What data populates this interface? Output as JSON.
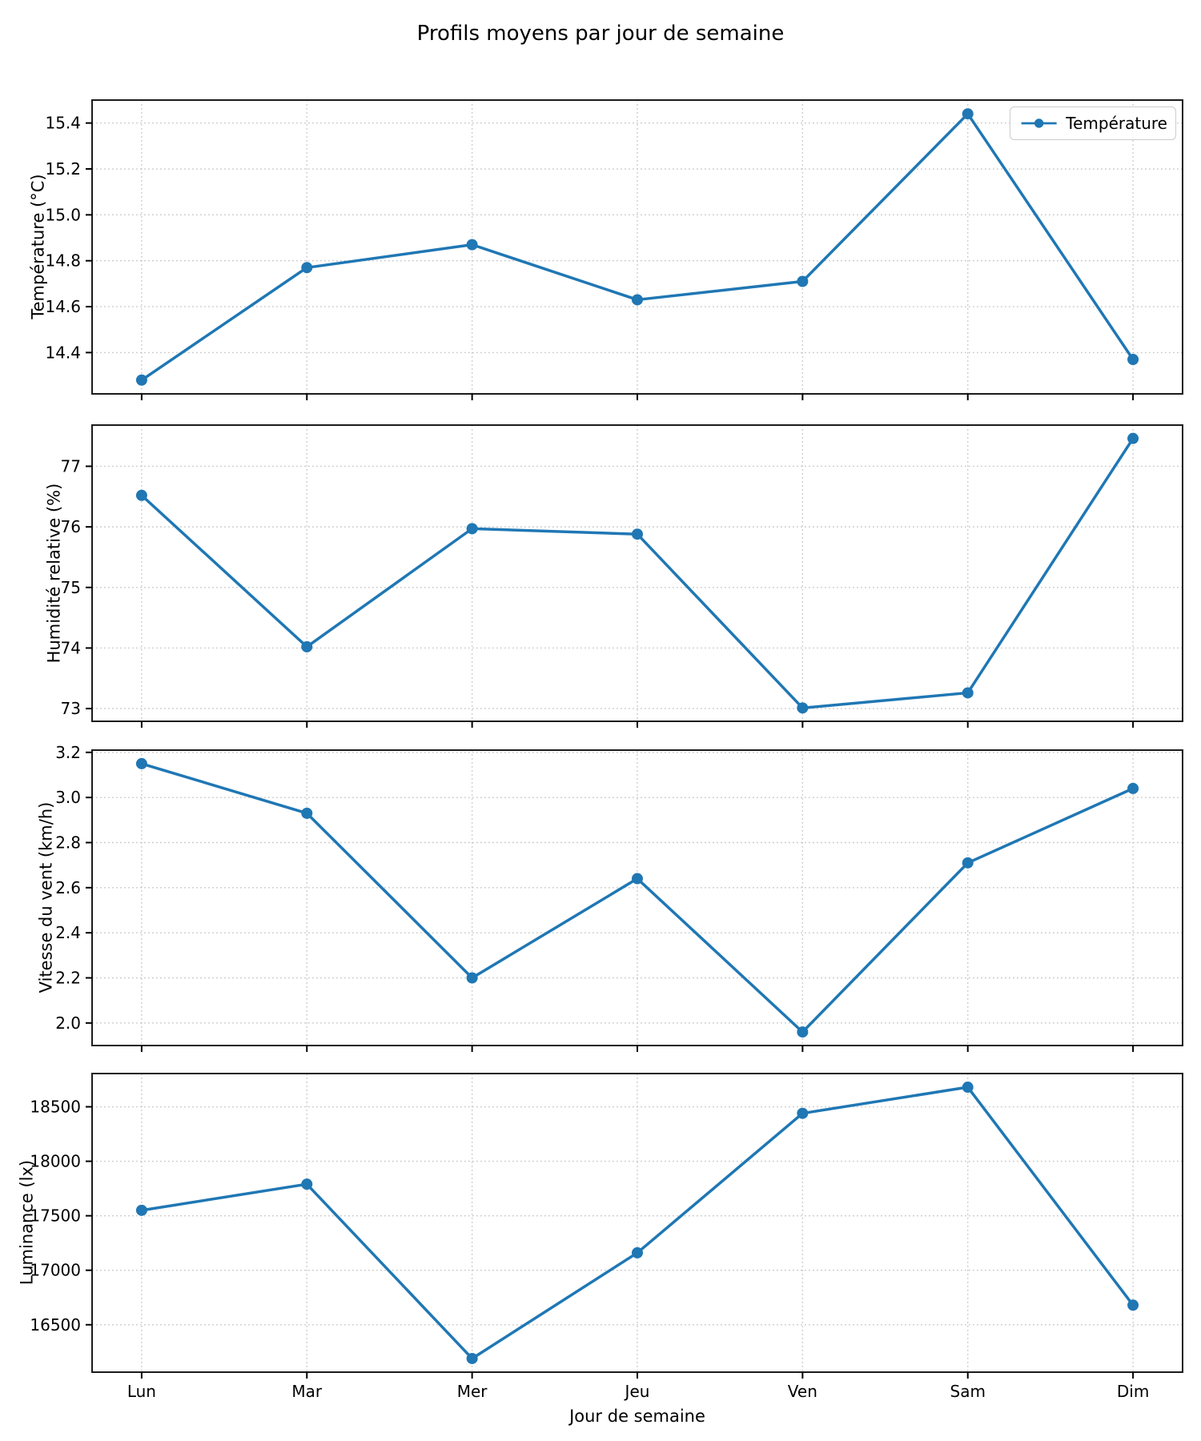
{
  "figure": {
    "title": "Profils moyens par jour de semaine",
    "background": "#ffffff",
    "text_color": "#000000"
  },
  "chart_data": {
    "type": "line",
    "x_label": "Jour de semaine",
    "categories": [
      "Lun",
      "Mar",
      "Mer",
      "Jeu",
      "Ven",
      "Sam",
      "Dim"
    ],
    "xlim": [
      -0.3,
      6.3
    ],
    "grid": true,
    "line_color": "#1f77b4",
    "grid_color": "#c9c9c9",
    "spine_color": "#1b1b1b",
    "legend_position": "upper right",
    "subplots": [
      {
        "ylabel": "Température (°C)",
        "series_name": "Température",
        "legend": true,
        "values": [
          14.28,
          14.77,
          14.87,
          14.63,
          14.71,
          15.44,
          14.37
        ],
        "yticks": [
          14.4,
          14.6,
          14.8,
          15.0,
          15.2,
          15.4
        ],
        "ytick_labels": [
          "14.4",
          "14.6",
          "14.8",
          "15.0",
          "15.2",
          "15.4"
        ],
        "ylim": [
          14.22,
          15.5
        ]
      },
      {
        "ylabel": "Humidité relative (%)",
        "series_name": "Humidité relative",
        "legend": false,
        "values": [
          76.52,
          74.02,
          75.97,
          75.88,
          73.01,
          73.26,
          77.46
        ],
        "yticks": [
          73,
          74,
          75,
          76,
          77
        ],
        "ytick_labels": [
          "73",
          "74",
          "75",
          "76",
          "77"
        ],
        "ylim": [
          72.79,
          77.68
        ]
      },
      {
        "ylabel": "Vitesse du vent (km/h)",
        "series_name": "Vitesse du vent",
        "legend": false,
        "values": [
          3.15,
          2.93,
          2.2,
          2.64,
          1.96,
          2.71,
          3.04
        ],
        "yticks": [
          2.0,
          2.2,
          2.4,
          2.6,
          2.8,
          3.0,
          3.2
        ],
        "ytick_labels": [
          "2.0",
          "2.2",
          "2.4",
          "2.6",
          "2.8",
          "3.0",
          "3.2"
        ],
        "ylim": [
          1.9,
          3.21
        ]
      },
      {
        "ylabel": "Luminance (lx)",
        "series_name": "Luminance",
        "legend": false,
        "values": [
          17550,
          17790,
          16190,
          17160,
          18440,
          18680,
          16680
        ],
        "yticks": [
          16500,
          17000,
          17500,
          18000,
          18500
        ],
        "ytick_labels": [
          "16500",
          "17000",
          "17500",
          "18000",
          "18500"
        ],
        "ylim": [
          16065,
          18805
        ]
      }
    ]
  }
}
